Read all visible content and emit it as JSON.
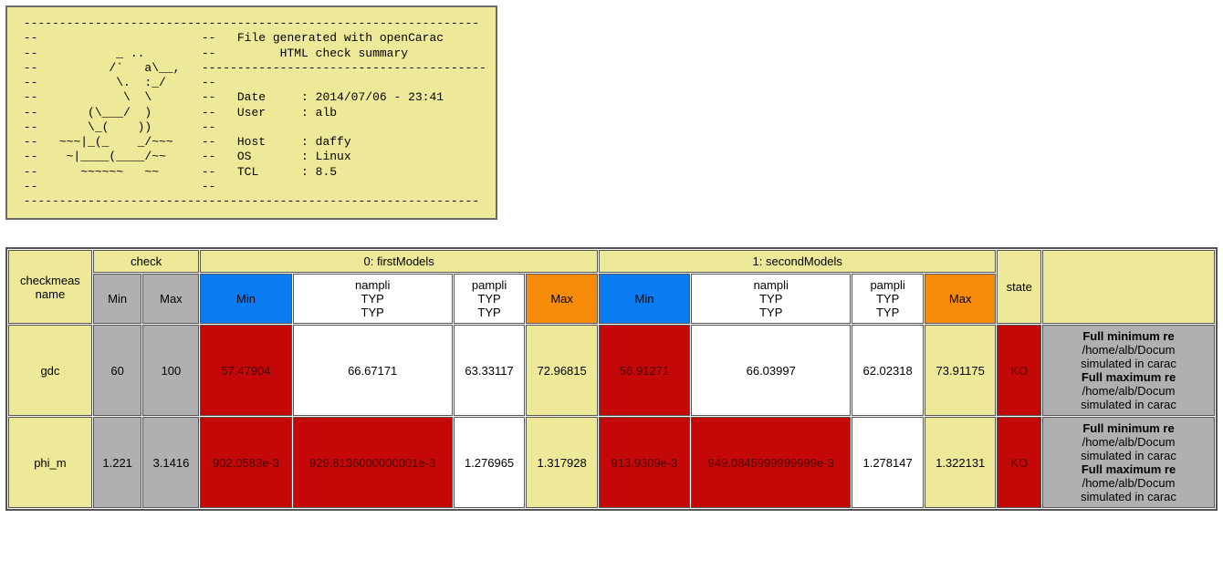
{
  "header": {
    "ascii": " ----------------------------------------------------------------\n --                       --   File generated with openCarac\n --           _ ..        --         HTML check summary\n --          /`   a\\__,   ----------------------------------------\n --           \\.  :_/     --\n --            \\  \\       --   Date     : 2014/07/06 - 23:41\n --       (\\___/  )       --   User     : alb\n --       \\_(    ))       --\n --   ~~~|_(_    _/~~~    --   Host     : daffy\n --    ~|____(____/~~     --   OS       : Linux\n --      ~~~~~~   ~~      --   TCL      : 8.5\n --                       --\n ----------------------------------------------------------------"
  },
  "colors": {
    "yellow": "#eee998",
    "grey": "#b0b0b0",
    "white": "#ffffff",
    "blue": "#0a7cf2",
    "orange": "#f98b0b",
    "dkred": "#c40707"
  },
  "table": {
    "col_checkmeas": "checkmeas\nname",
    "grp_check": "check",
    "grp_model0": "0: firstModels",
    "grp_model1": "1: secondModels",
    "col_state": "state",
    "sub_min": "Min",
    "sub_max": "Max",
    "sub_nampli": "nampli\nTYP\nTYP",
    "sub_pampli": "pampli\nTYP\nTYP",
    "rows": [
      {
        "name": "gdc",
        "check_min": "60",
        "check_max": "100",
        "m0_min": "57.47904",
        "m0_nampli": "66.67171",
        "m0_pampli": "63.33117",
        "m0_max": "72.96815",
        "m1_min": "56.91271",
        "m1_nampli": "66.03997",
        "m1_pampli": "62.02318",
        "m1_max": "73.91175",
        "state": "KO",
        "comment_html": "<b>Full minimum re</b><br>/home/alb/Docum<br>simulated in carac<br><b>Full maximum re</b><br>/home/alb/Docum<br>simulated in carac"
      },
      {
        "name": "phi_m",
        "check_min": "1.221",
        "check_max": "3.1416",
        "m0_min": "902.0583e-3",
        "m0_nampli": "929.8136000000001e-3",
        "m0_pampli": "1.276965",
        "m0_max": "1.317928",
        "m1_min": "913.9309e-3",
        "m1_nampli": "949.0845999999999e-3",
        "m1_pampli": "1.278147",
        "m1_max": "1.322131",
        "state": "KO",
        "comment_html": "<b>Full minimum re</b><br>/home/alb/Docum<br>simulated in carac<br><b>Full maximum re</b><br>/home/alb/Docum<br>simulated in carac"
      }
    ],
    "row_status_classes": [
      {
        "m0_min": "bg-dkred",
        "m0_nampli": "bg-white",
        "m0_pampli": "bg-white",
        "m0_max": "bg-yellow",
        "m1_min": "bg-dkred",
        "m1_nampli": "bg-white",
        "m1_pampli": "bg-white",
        "m1_max": "bg-yellow"
      },
      {
        "m0_min": "bg-dkred",
        "m0_nampli": "bg-dkred",
        "m0_pampli": "bg-white",
        "m0_max": "bg-yellow",
        "m1_min": "bg-dkred",
        "m1_nampli": "bg-dkred",
        "m1_pampli": "bg-white",
        "m1_max": "bg-yellow"
      }
    ]
  }
}
